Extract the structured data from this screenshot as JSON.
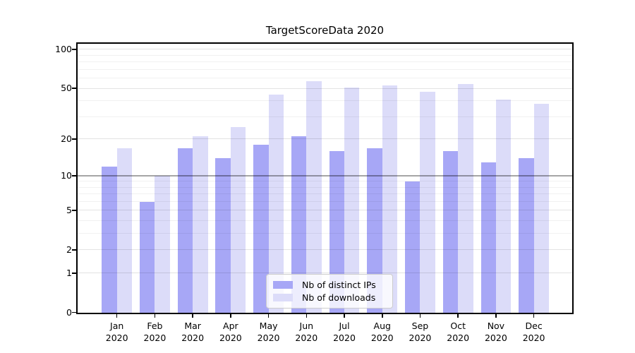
{
  "title": "TargetScoreData 2020",
  "chart_data": {
    "type": "bar",
    "title": "TargetScoreData 2020",
    "x_months": [
      "Jan",
      "Feb",
      "Mar",
      "Apr",
      "May",
      "Jun",
      "Jul",
      "Aug",
      "Sep",
      "Oct",
      "Nov",
      "Dec"
    ],
    "x_year": "2020",
    "series": [
      {
        "name": "Nb of distinct IPs",
        "color": "#a7a7f6",
        "values": [
          12,
          6,
          17,
          14,
          18,
          21,
          16,
          17,
          9,
          16,
          13,
          14
        ]
      },
      {
        "name": "Nb of downloads",
        "color": "#dcdcf9",
        "values": [
          17,
          10,
          21,
          25,
          45,
          57,
          51,
          53,
          47,
          54,
          41,
          38
        ]
      }
    ],
    "y_scale": "symlog-log1p",
    "y_ticks": [
      0,
      1,
      2,
      5,
      10,
      20,
      50,
      100
    ],
    "y_minor_gridlines": [
      3,
      4,
      6,
      7,
      8,
      9,
      30,
      40,
      60,
      70,
      80,
      90
    ],
    "y_max": 110,
    "emphasized_gridline_value": 10,
    "grid": true,
    "legend_position": "lower center"
  },
  "colors": {
    "background": "#ffffff",
    "grid_major": "rgba(0,0,0,0.11)",
    "grid_minor": "rgba(0,0,0,0.055)",
    "grid_emphasized": "rgba(0,0,0,0.35)",
    "spine": "#000000",
    "text": "#000000"
  }
}
